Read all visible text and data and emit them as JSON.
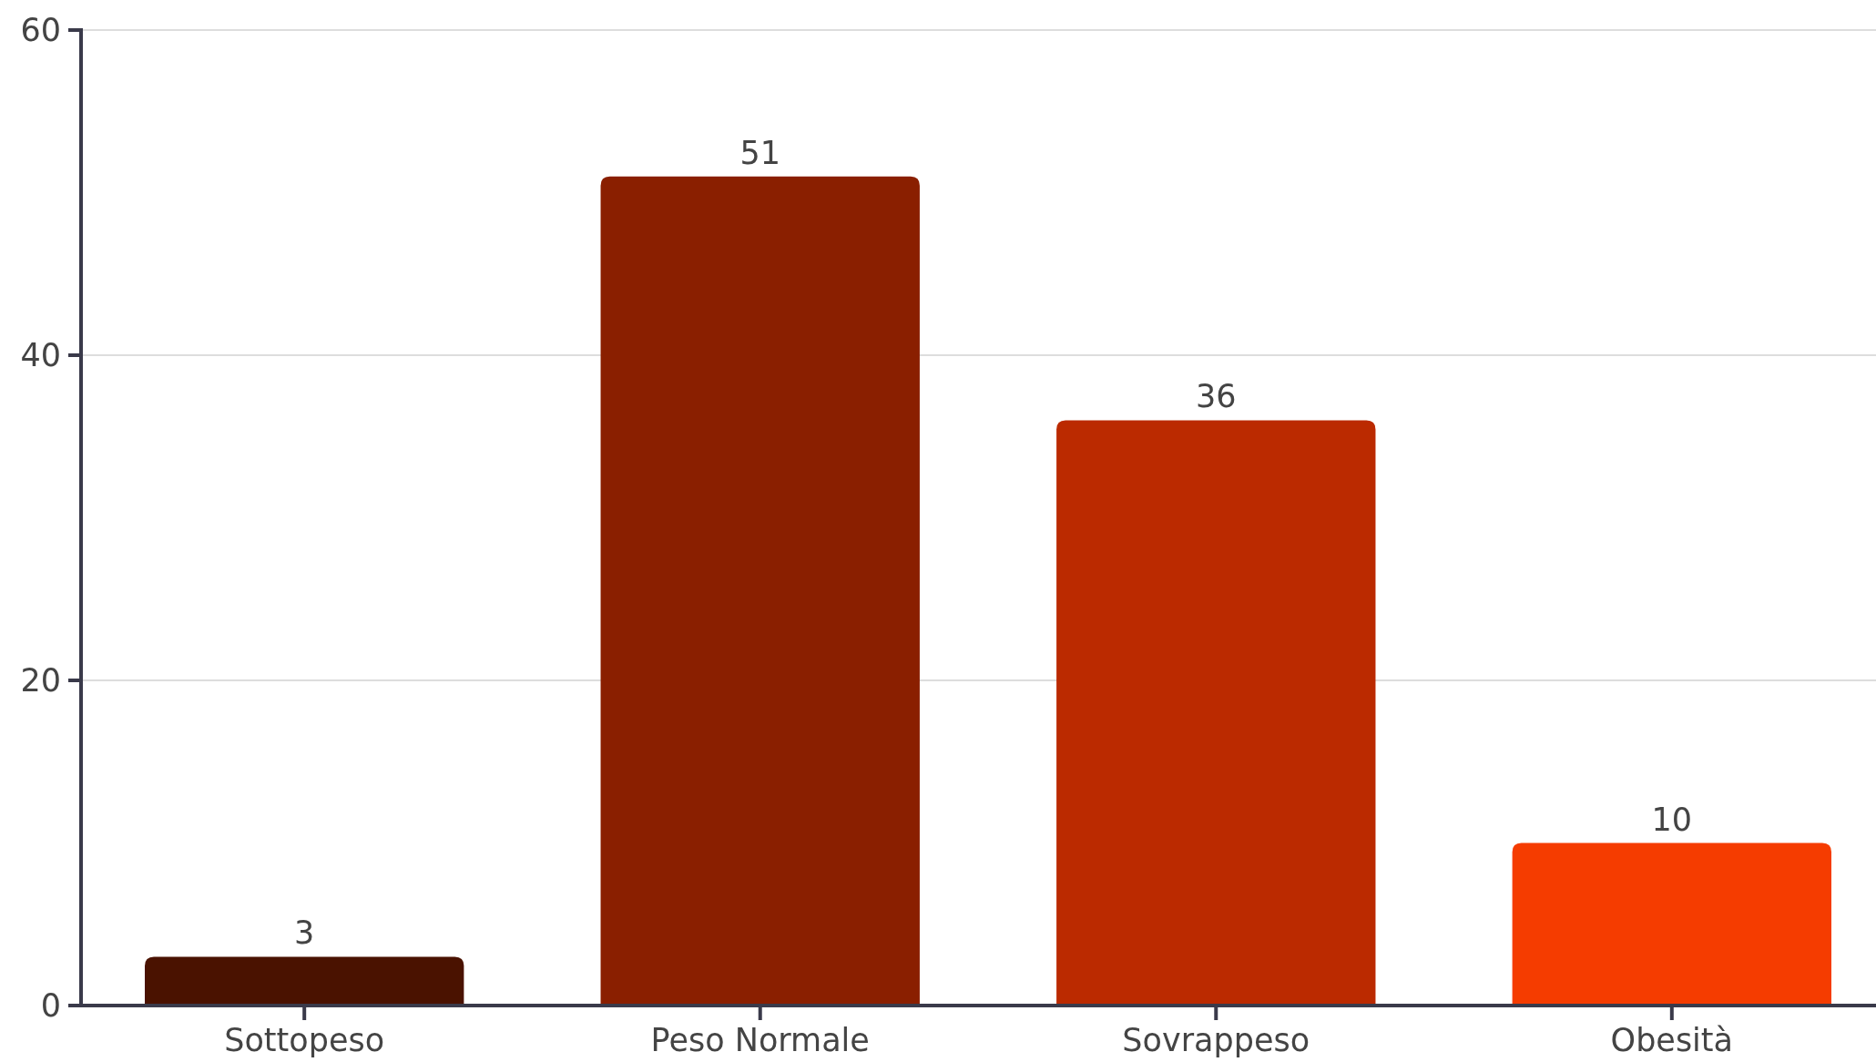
{
  "chart_data": {
    "type": "bar",
    "categories": [
      "Sottopeso",
      "Peso Normale",
      "Sovrappeso",
      "Obesità"
    ],
    "values": [
      3,
      51,
      36,
      10
    ],
    "colors": [
      "#4a1200",
      "#8a1f00",
      "#bb2a00",
      "#f53c00"
    ],
    "ylim": [
      0,
      60
    ],
    "yticks": [
      0,
      20,
      40,
      60
    ],
    "grid": "y",
    "data_labels": true
  }
}
